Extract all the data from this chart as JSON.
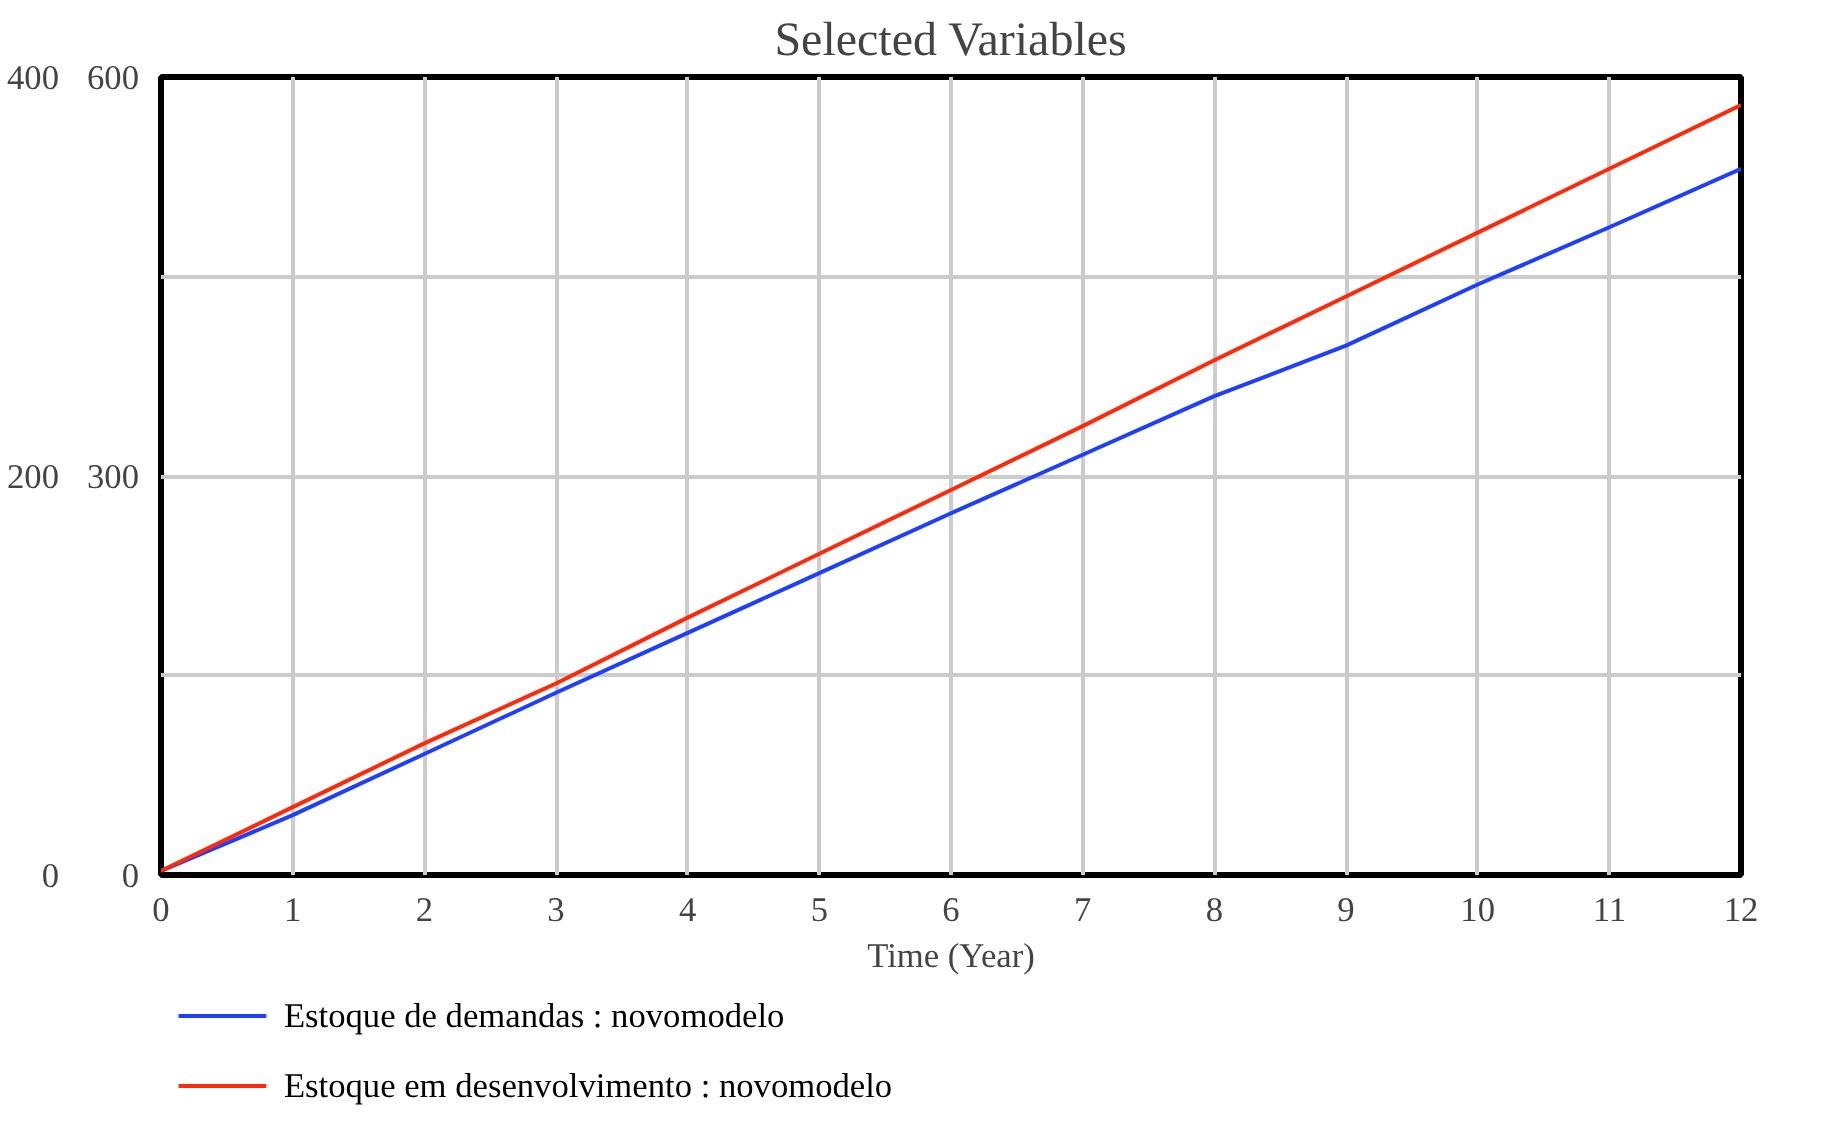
{
  "chart_data": {
    "type": "line",
    "title": "Selected Variables",
    "xlabel": "Time (Year)",
    "x": [
      0,
      1,
      2,
      3,
      4,
      5,
      6,
      7,
      8,
      9,
      10,
      11,
      12
    ],
    "series": [
      {
        "name": "Estoque de demandas : novomodelo",
        "color": "#1f3fff",
        "values": [
          3,
          45,
          91,
          137,
          182,
          227,
          272,
          316,
          360,
          398,
          444,
          487,
          531
        ]
      },
      {
        "name": "Estoque em desenvolvimento : novomodelo",
        "color": "#ff2a0a",
        "axis": "y2",
        "values": [
          2,
          34,
          66,
          96,
          129,
          161,
          193,
          225,
          258,
          290,
          322,
          354,
          386
        ]
      }
    ],
    "xlim": [
      0,
      12
    ],
    "xticks": [
      0,
      1,
      2,
      3,
      4,
      5,
      6,
      7,
      8,
      9,
      10,
      11,
      12
    ],
    "ylim": [
      0,
      600
    ],
    "yticks": [
      0,
      {
        "value": 150,
        "label": null
      },
      300,
      {
        "value": 450,
        "label": null
      },
      600
    ],
    "y2lim": [
      0,
      400
    ],
    "y2ticks": [
      0,
      200,
      400
    ],
    "grid": true,
    "legend": "bottom",
    "marker": "none",
    "line_style": "solid"
  }
}
